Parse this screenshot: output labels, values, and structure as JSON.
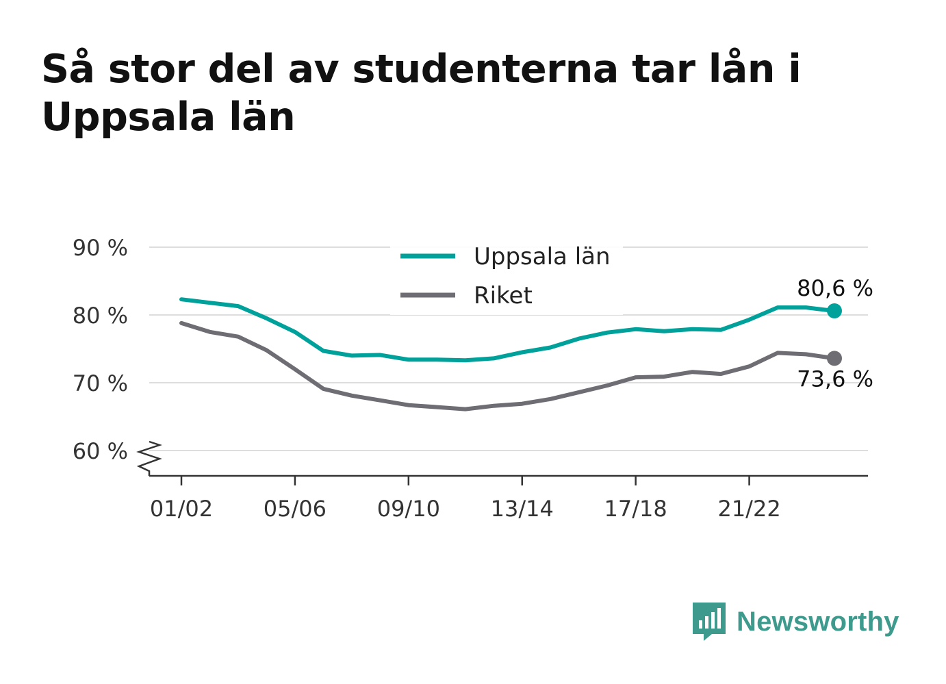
{
  "title": "Så stor del av studenterna tar lån i Uppsala län",
  "chart_data": {
    "type": "line",
    "x": [
      "01/02",
      "02/03",
      "03/04",
      "04/05",
      "05/06",
      "06/07",
      "07/08",
      "08/09",
      "09/10",
      "10/11",
      "11/12",
      "12/13",
      "13/14",
      "14/15",
      "15/16",
      "16/17",
      "17/18",
      "18/19",
      "19/20",
      "20/21",
      "21/22",
      "22/23",
      "23/24",
      "24/25"
    ],
    "x_ticks": [
      "01/02",
      "05/06",
      "09/10",
      "13/14",
      "17/18",
      "21/22"
    ],
    "series": [
      {
        "name": "Uppsala län",
        "color": "#00a19a",
        "values": [
          82.3,
          81.8,
          81.3,
          79.5,
          77.5,
          74.7,
          74.0,
          74.1,
          73.4,
          73.4,
          73.3,
          73.6,
          74.5,
          75.2,
          76.5,
          77.4,
          77.9,
          77.6,
          77.9,
          77.8,
          79.3,
          81.1,
          81.1,
          80.6
        ],
        "end_label": "80,6 %"
      },
      {
        "name": "Riket",
        "color": "#6d6d73",
        "values": [
          78.8,
          77.5,
          76.8,
          74.8,
          72.0,
          69.1,
          68.1,
          67.4,
          66.7,
          66.4,
          66.1,
          66.6,
          66.9,
          67.6,
          68.6,
          69.6,
          70.8,
          70.9,
          71.6,
          71.3,
          72.4,
          74.4,
          74.2,
          73.6
        ],
        "end_label": "73,6 %"
      }
    ],
    "y_ticks": [
      {
        "value": 60,
        "label": "60 %"
      },
      {
        "value": 70,
        "label": "70 %"
      },
      {
        "value": 80,
        "label": "80 %"
      },
      {
        "value": 90,
        "label": "90 %"
      }
    ],
    "ylim": [
      57,
      92
    ],
    "y_axis_break": true,
    "grid": true,
    "legend_position": "top-center"
  },
  "brand": {
    "name": "Newsworthy",
    "icon": "newsworthy-logo-icon",
    "color": "#3d9a8c"
  }
}
